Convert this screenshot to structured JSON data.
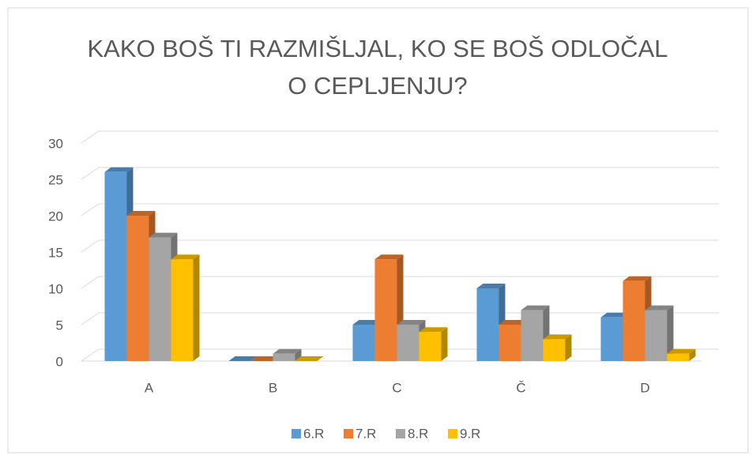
{
  "chart_data": {
    "type": "bar3d",
    "title": "KAKO BOŠ TI RAZMIŠLJAL, KO SE BOŠ ODLOČAL O CEPLJENJU?",
    "categories": [
      "A",
      "B",
      "C",
      "Č",
      "D"
    ],
    "series": [
      {
        "name": "6.R",
        "color": "#5b9bd5",
        "values": [
          26,
          0,
          5,
          10,
          6
        ]
      },
      {
        "name": "7.R",
        "color": "#ed7d31",
        "values": [
          20,
          0,
          14,
          5,
          11
        ]
      },
      {
        "name": "8.R",
        "color": "#a5a5a5",
        "values": [
          17,
          1,
          5,
          7,
          7
        ]
      },
      {
        "name": "9.R",
        "color": "#ffc000",
        "values": [
          14,
          0,
          4,
          3,
          1
        ]
      }
    ],
    "ylim": [
      0,
      30
    ],
    "yticks": [
      0,
      5,
      10,
      15,
      20,
      25,
      30
    ],
    "grid": true,
    "legend": "bottom"
  }
}
